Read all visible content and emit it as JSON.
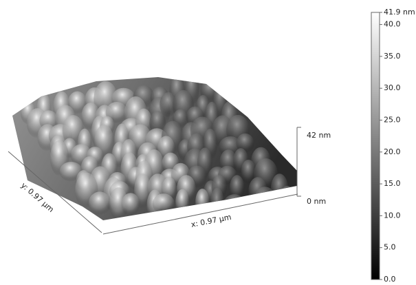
{
  "surface": {
    "x_label": "x: 0.97 µm",
    "y_label": "y: 0.97 µm",
    "z_top_label": "42 nm",
    "z_bottom_label": "0 nm"
  },
  "colorbar": {
    "range": [
      0,
      41.9
    ],
    "ticks": [
      {
        "value": 41.9,
        "label": "41.9 nm"
      },
      {
        "value": 40,
        "label": "40.0"
      },
      {
        "value": 35,
        "label": "35.0"
      },
      {
        "value": 30,
        "label": "30.0"
      },
      {
        "value": 25,
        "label": "25.0"
      },
      {
        "value": 20,
        "label": "20.0"
      },
      {
        "value": 15,
        "label": "15.0"
      },
      {
        "value": 10,
        "label": "10.0"
      },
      {
        "value": 5,
        "label": "5.0"
      },
      {
        "value": 0,
        "label": "0.0"
      }
    ]
  }
}
